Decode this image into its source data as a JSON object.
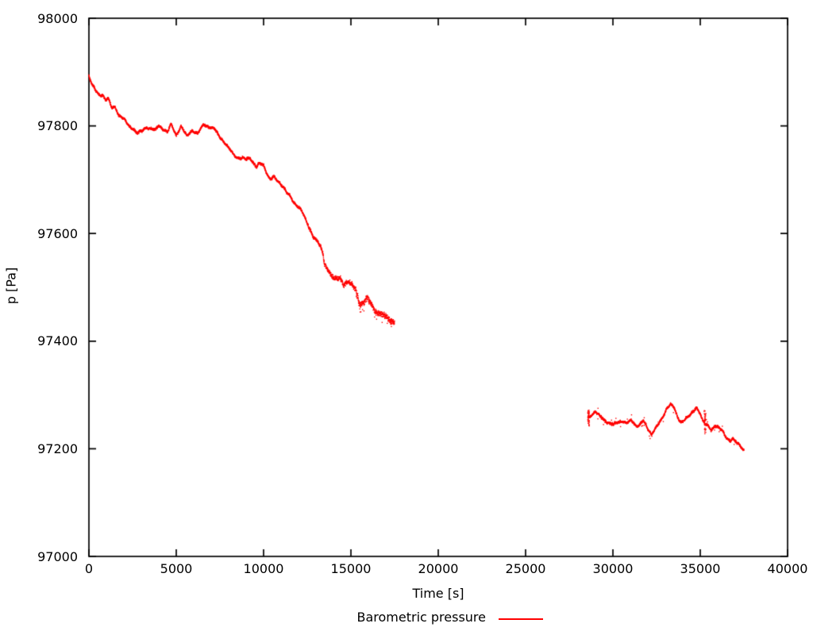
{
  "chart_data": {
    "type": "scatter",
    "style": "dots",
    "title": "",
    "xlabel": "Time [s]",
    "ylabel": "p [Pa]",
    "xlim": [
      0,
      40000
    ],
    "ylim": [
      97000,
      98000
    ],
    "xticks": [
      0,
      5000,
      10000,
      15000,
      20000,
      25000,
      30000,
      35000,
      40000
    ],
    "yticks": [
      97000,
      97200,
      97400,
      97600,
      97800,
      98000
    ],
    "grid": false,
    "legend_position": "bottom-center",
    "color": "#ff0000",
    "axis_color": "#000000",
    "background": "#ffffff",
    "series": [
      {
        "name": "Barometric pressure",
        "color": "#ff0000",
        "segments": [
          {
            "points": [
              [
                0,
                97893
              ],
              [
                150,
                97878
              ],
              [
                300,
                97870
              ],
              [
                450,
                97863
              ],
              [
                600,
                97858
              ],
              [
                800,
                97857
              ],
              [
                950,
                97847
              ],
              [
                1100,
                97851
              ],
              [
                1300,
                97834
              ],
              [
                1500,
                97836
              ],
              [
                1700,
                97820
              ],
              [
                1900,
                97815
              ],
              [
                2100,
                97809
              ],
              [
                2300,
                97800
              ],
              [
                2550,
                97794
              ],
              [
                2750,
                97786
              ],
              [
                3000,
                97790
              ],
              [
                3300,
                97798
              ],
              [
                3550,
                97794
              ],
              [
                3800,
                97792
              ],
              [
                4000,
                97801
              ],
              [
                4250,
                97794
              ],
              [
                4500,
                97788
              ],
              [
                4700,
                97803
              ],
              [
                5000,
                97783
              ],
              [
                5270,
                97799
              ],
              [
                5600,
                97781
              ],
              [
                5900,
                97792
              ],
              [
                6230,
                97785
              ],
              [
                6550,
                97802
              ],
              [
                6860,
                97799
              ],
              [
                7180,
                97794
              ],
              [
                7500,
                97779
              ],
              [
                7850,
                97766
              ],
              [
                8230,
                97748
              ],
              [
                8500,
                97741
              ],
              [
                8800,
                97741
              ],
              [
                9000,
                97737
              ],
              [
                9230,
                97740
              ],
              [
                9590,
                97724
              ],
              [
                9770,
                97731
              ],
              [
                10000,
                97726
              ],
              [
                10140,
                97715
              ],
              [
                10360,
                97702
              ],
              [
                10590,
                97706
              ],
              [
                10730,
                97699
              ],
              [
                10910,
                97693
              ],
              [
                11140,
                97687
              ],
              [
                11300,
                97679
              ],
              [
                11500,
                97670
              ],
              [
                11730,
                97656
              ],
              [
                11960,
                97650
              ],
              [
                12180,
                97645
              ],
              [
                12410,
                97625
              ],
              [
                12640,
                97607
              ],
              [
                12860,
                97594
              ],
              [
                13090,
                97587
              ],
              [
                13320,
                97570
              ],
              [
                13410,
                97560
              ],
              [
                13460,
                97544
              ],
              [
                13680,
                97532
              ],
              [
                13860,
                97524
              ],
              [
                14000,
                97518
              ],
              [
                14230,
                97515
              ],
              [
                14360,
                97517
              ],
              [
                14590,
                97505
              ],
              [
                14820,
                97512
              ],
              [
                15050,
                97504
              ],
              [
                15270,
                97495
              ],
              [
                15500,
                97468
              ],
              [
                15730,
                97473
              ],
              [
                15950,
                97480
              ],
              [
                16180,
                97467
              ],
              [
                16360,
                97458
              ],
              [
                16590,
                97452
              ],
              [
                16820,
                97448
              ],
              [
                17050,
                97444
              ],
              [
                17270,
                97440
              ],
              [
                17500,
                97435
              ]
            ]
          },
          {
            "points": [
              [
                28600,
                97258
              ],
              [
                28750,
                97262
              ],
              [
                29000,
                97270
              ],
              [
                29300,
                97258
              ],
              [
                29550,
                97252
              ],
              [
                29800,
                97248
              ],
              [
                30050,
                97245
              ],
              [
                30300,
                97249
              ],
              [
                30550,
                97252
              ],
              [
                30800,
                97248
              ],
              [
                31050,
                97252
              ],
              [
                31250,
                97245
              ],
              [
                31400,
                97242
              ],
              [
                31600,
                97248
              ],
              [
                31750,
                97252
              ],
              [
                32000,
                97236
              ],
              [
                32200,
                97227
              ],
              [
                32450,
                97240
              ],
              [
                32700,
                97249
              ],
              [
                32950,
                97264
              ],
              [
                33100,
                97277
              ],
              [
                33300,
                97284
              ],
              [
                33500,
                97277
              ],
              [
                33700,
                97257
              ],
              [
                33900,
                97249
              ],
              [
                34150,
                97257
              ],
              [
                34400,
                97262
              ],
              [
                34600,
                97268
              ],
              [
                34770,
                97277
              ],
              [
                35000,
                97266
              ],
              [
                35150,
                97252
              ],
              [
                35270,
                97246
              ],
              [
                35500,
                97240
              ],
              [
                35630,
                97234
              ],
              [
                35850,
                97244
              ],
              [
                36050,
                97240
              ],
              [
                36270,
                97232
              ],
              [
                36500,
                97220
              ],
              [
                36730,
                97215
              ],
              [
                36860,
                97220
              ],
              [
                37040,
                97212
              ],
              [
                37180,
                97208
              ],
              [
                37320,
                97204
              ],
              [
                37500,
                97197
              ]
            ]
          }
        ]
      }
    ],
    "spikes": [
      {
        "t": 28610,
        "p_min": 97240,
        "p_max": 97273
      },
      {
        "t": 35270,
        "p_min": 97226,
        "p_max": 97271
      }
    ]
  }
}
